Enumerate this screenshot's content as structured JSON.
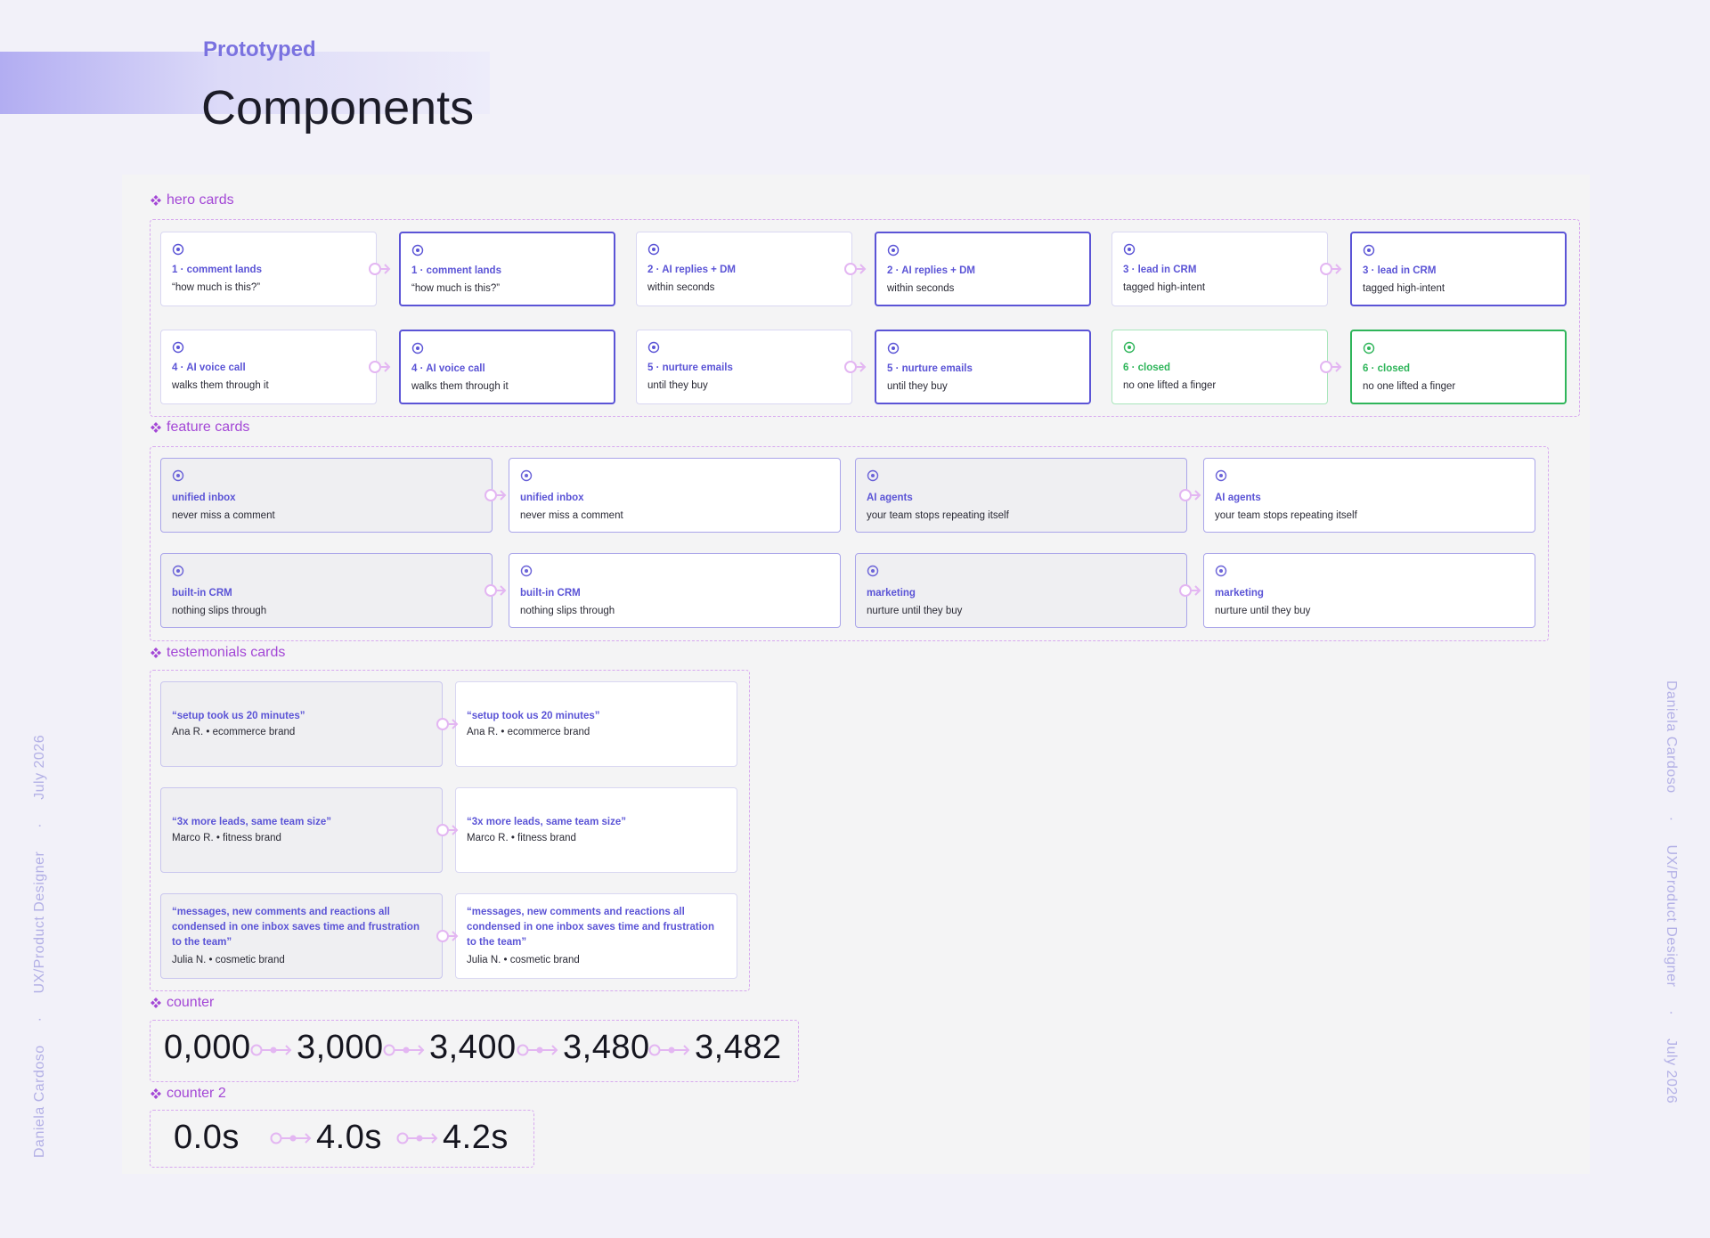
{
  "header": {
    "eyebrow": "Prototyped",
    "title": "Components"
  },
  "side": {
    "author": "Daniela Cardoso",
    "role": "UX/Product Designer",
    "date": "July 2026",
    "separator": "·"
  },
  "hero": {
    "label": "hero cards",
    "cards": [
      {
        "title": "1 · comment lands",
        "text": "“how much is this?”",
        "color": "#5b54d6"
      },
      {
        "title": "2 · AI replies + DM",
        "text": "within seconds",
        "color": "#5b54d6"
      },
      {
        "title": "3 · lead in CRM",
        "text": "tagged high-intent",
        "color": "#5b54d6"
      },
      {
        "title": "4 · AI voice call",
        "text": "walks them through it",
        "color": "#5b54d6"
      },
      {
        "title": "5 · nurture emails",
        "text": "until they buy",
        "color": "#5b54d6"
      },
      {
        "title": "6 · closed",
        "text": "no one lifted a finger",
        "color": "#2fb55a"
      }
    ]
  },
  "feature": {
    "label": "feature cards",
    "cards": [
      {
        "title": "unified inbox",
        "text": "never miss a comment"
      },
      {
        "title": "AI agents",
        "text": "your team stops repeating itself"
      },
      {
        "title": "built-in CRM",
        "text": "nothing slips through"
      },
      {
        "title": "marketing",
        "text": "nurture until they buy"
      }
    ]
  },
  "testimonials": {
    "label": "testemonials cards",
    "cards": [
      {
        "quote": "“setup took us 20 minutes”",
        "author": "Ana R. • ecommerce brand"
      },
      {
        "quote": "“3x more leads, same team size”",
        "author": "Marco R. • fitness brand"
      },
      {
        "quote": "“messages, new comments and reactions all condensed in one inbox saves time and frustration to the team”",
        "author": "Julia N. • cosmetic brand"
      }
    ]
  },
  "counter": {
    "label": "counter",
    "values": [
      "0,000",
      "3,000",
      "3,400",
      "3,480",
      "3,482"
    ]
  },
  "counter2": {
    "label": "counter 2",
    "values": [
      "0.0s",
      "4.0s",
      "4.2s"
    ]
  }
}
